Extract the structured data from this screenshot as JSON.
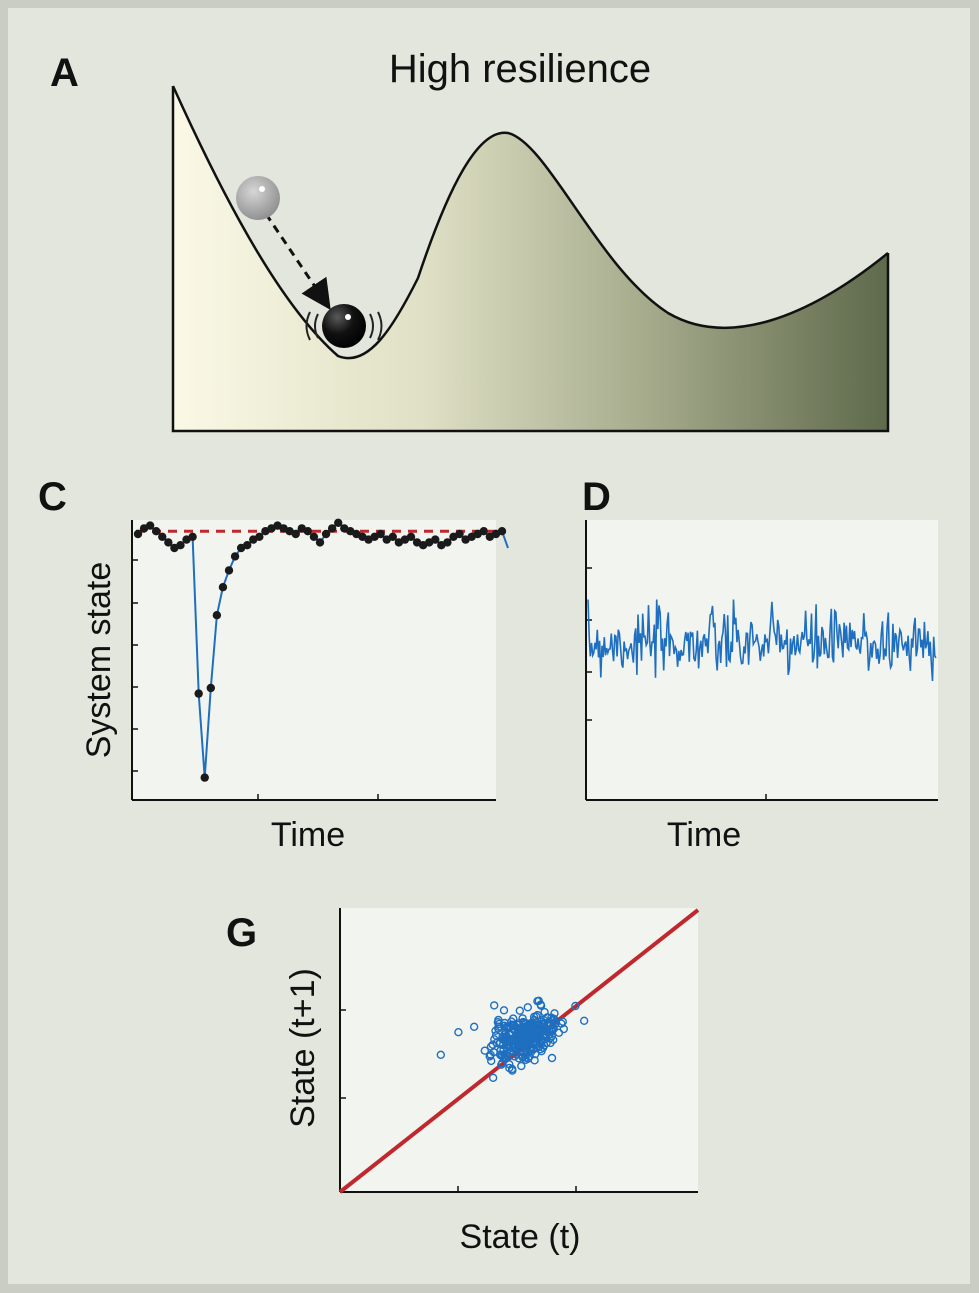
{
  "figure": {
    "panel_a": {
      "letter": "A",
      "title": "High resilience"
    },
    "panel_c": {
      "letter": "C",
      "xlabel": "Time",
      "ylabel": "System state"
    },
    "panel_d": {
      "letter": "D",
      "xlabel": "Time"
    },
    "panel_g": {
      "letter": "G",
      "xlabel": "State (t)",
      "ylabel": "State (t+1)"
    }
  },
  "colors": {
    "series_blue": "#1f6fc0",
    "equilibrium_red": "#c0282e",
    "dots_black": "#1a1a1a",
    "plot_bg": "#f2f4ef",
    "landscape_light": "#fbf9e6",
    "landscape_dark": "#5e6a4b"
  },
  "chart_data": [
    {
      "panel": "C",
      "type": "line",
      "xlabel": "Time",
      "ylabel": "System state",
      "series": [
        {
          "values": [
            0.95,
            0.97,
            0.98,
            0.96,
            0.94,
            0.92,
            0.9,
            0.91,
            0.93,
            0.94,
            0.38,
            0.08,
            0.4,
            0.66,
            0.76,
            0.82,
            0.87,
            0.9,
            0.91,
            0.93,
            0.94,
            0.96,
            0.97,
            0.98,
            0.97,
            0.96,
            0.95,
            0.97,
            0.96,
            0.94,
            0.92,
            0.95,
            0.97,
            0.99,
            0.97,
            0.96,
            0.95,
            0.94,
            0.93,
            0.94,
            0.95,
            0.93,
            0.94,
            0.92,
            0.93,
            0.94,
            0.92,
            0.91,
            0.92,
            0.93,
            0.91,
            0.92,
            0.94,
            0.95,
            0.93,
            0.94,
            0.95,
            0.96,
            0.94,
            0.95,
            0.96
          ]
        }
      ],
      "equilibrium": 0.96
    },
    {
      "panel": "D",
      "type": "line",
      "xlabel": "Time",
      "mean": 0.56,
      "noise_amplitude": 0.06,
      "samples": 300
    },
    {
      "panel": "G",
      "type": "scatter",
      "xlabel": "State (t)",
      "ylabel": "State (t+1)",
      "reference_line": "y = x",
      "cluster_center": [
        0.52,
        0.55
      ],
      "points": 300
    }
  ]
}
